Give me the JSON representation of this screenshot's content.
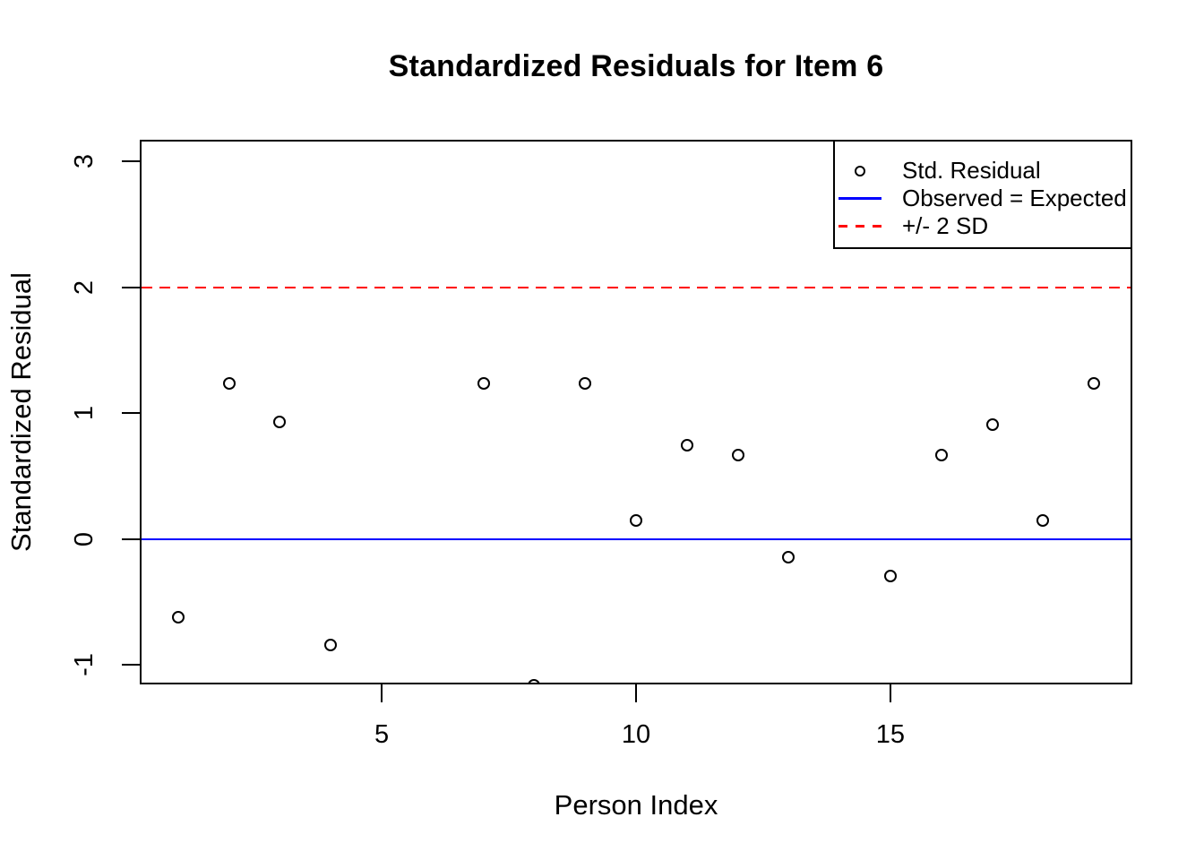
{
  "figure": {
    "background": "#ffffff"
  },
  "chart_data": {
    "type": "scatter",
    "title": "Standardized Residuals for Item 6",
    "xlabel": "Person Index",
    "ylabel": "Standardized Residual",
    "xlim": [
      0.28,
      19.72
    ],
    "ylim": [
      -1.14,
      3.16
    ],
    "x_ticks": [
      {
        "value": 5,
        "label": "5"
      },
      {
        "value": 10,
        "label": "10"
      },
      {
        "value": 15,
        "label": "15"
      }
    ],
    "y_ticks": [
      {
        "value": 3,
        "label": "3"
      },
      {
        "value": 2,
        "label": "2"
      },
      {
        "value": 1,
        "label": "1"
      },
      {
        "value": 0,
        "label": "0"
      },
      {
        "value": -1,
        "label": "-1"
      }
    ],
    "points": [
      {
        "x": 1,
        "y": -0.62
      },
      {
        "x": 2,
        "y": 1.24
      },
      {
        "x": 3,
        "y": 0.93
      },
      {
        "x": 4,
        "y": -0.84
      },
      {
        "x": 7,
        "y": 1.24
      },
      {
        "x": 8,
        "y": -1.16
      },
      {
        "x": 9,
        "y": 1.24
      },
      {
        "x": 10,
        "y": 0.15
      },
      {
        "x": 11,
        "y": 0.75
      },
      {
        "x": 12,
        "y": 0.67
      },
      {
        "x": 13,
        "y": -0.14
      },
      {
        "x": 15,
        "y": -0.29
      },
      {
        "x": 16,
        "y": 0.67
      },
      {
        "x": 17,
        "y": 0.91
      },
      {
        "x": 18,
        "y": 0.15
      },
      {
        "x": 19,
        "y": 1.24
      }
    ],
    "point_style": {
      "shape": "open-circle",
      "color": "#000000"
    },
    "reference_lines": [
      {
        "y": 0,
        "color": "#0000ff",
        "style": "solid"
      },
      {
        "y": 2,
        "color": "#ff0000",
        "style": "dashed"
      }
    ],
    "legend": {
      "position": "topright",
      "entries": [
        {
          "symbol": "open-circle",
          "color": "#000000",
          "label": "Std. Residual"
        },
        {
          "symbol": "solid-line",
          "color": "#0000ff",
          "label": "Observed = Expected"
        },
        {
          "symbol": "dashed-line",
          "color": "#ff0000",
          "label": "+/- 2 SD"
        }
      ]
    },
    "grid": false
  }
}
